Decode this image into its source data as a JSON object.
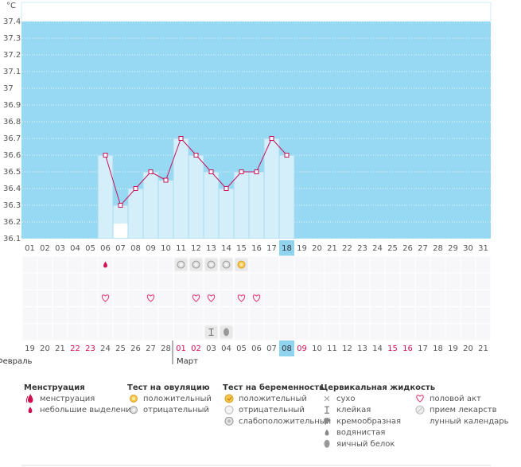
{
  "chart_data": {
    "type": "line",
    "unit": "°C",
    "categories": [
      "01",
      "02",
      "03",
      "04",
      "05",
      "06",
      "07",
      "08",
      "09",
      "10",
      "11",
      "12",
      "13",
      "14",
      "15",
      "16",
      "17",
      "18",
      "19",
      "20",
      "21",
      "22",
      "23",
      "24",
      "25",
      "26",
      "27",
      "28",
      "29",
      "30",
      "31"
    ],
    "values": [
      null,
      null,
      null,
      null,
      null,
      36.6,
      36.3,
      36.4,
      36.5,
      36.45,
      36.7,
      36.6,
      36.5,
      36.4,
      36.5,
      36.5,
      36.7,
      36.6,
      null,
      null,
      null,
      null,
      null,
      null,
      null,
      null,
      null,
      null,
      null,
      null,
      null
    ],
    "color": "#c8105a",
    "bar_color": "#d4eefa",
    "plot_color": "#97d8f2",
    "ylim": [
      36.1,
      37.4
    ],
    "yticks": [
      36.1,
      36.2,
      36.3,
      36.4,
      36.5,
      36.6,
      36.7,
      36.8,
      36.9,
      37,
      37.1,
      37.2,
      37.3,
      37.4
    ],
    "grid": true,
    "highlight": "18",
    "plot_icons": [
      {
        "day": "07",
        "icon": "moon"
      }
    ]
  },
  "icon_rows": [
    [
      {
        "day": "06",
        "icon": "spotting"
      },
      {
        "day": "11",
        "icon": "ovulation-negative"
      },
      {
        "day": "12",
        "icon": "ovulation-negative"
      },
      {
        "day": "13",
        "icon": "ovulation-negative"
      },
      {
        "day": "14",
        "icon": "ovulation-negative"
      },
      {
        "day": "15",
        "icon": "ovulation-positive"
      }
    ],
    [],
    [
      {
        "day": "06",
        "icon": "intercourse"
      },
      {
        "day": "09",
        "icon": "intercourse"
      },
      {
        "day": "12",
        "icon": "intercourse"
      },
      {
        "day": "13",
        "icon": "intercourse"
      },
      {
        "day": "15",
        "icon": "intercourse"
      },
      {
        "day": "16",
        "icon": "intercourse"
      }
    ],
    [],
    [
      {
        "day": "13",
        "icon": "sticky"
      },
      {
        "day": "14",
        "icon": "eggwhite"
      }
    ]
  ],
  "dates": {
    "labels": [
      "19",
      "20",
      "21",
      "22",
      "23",
      "24",
      "25",
      "26",
      "27",
      "28",
      "01",
      "02",
      "03",
      "04",
      "05",
      "06",
      "07",
      "08",
      "09",
      "10",
      "11",
      "12",
      "13",
      "14",
      "15",
      "16",
      "17",
      "18",
      "19",
      "20",
      "21"
    ],
    "red": [
      false,
      false,
      false,
      true,
      true,
      false,
      false,
      false,
      false,
      false,
      true,
      true,
      false,
      false,
      false,
      false,
      false,
      false,
      true,
      false,
      false,
      false,
      false,
      false,
      true,
      true,
      false,
      false,
      false,
      false,
      false
    ],
    "highlight": "08",
    "months": [
      {
        "label": "Февраль",
        "start": "19"
      },
      {
        "label": "Март",
        "start": "01"
      }
    ]
  },
  "legend": [
    {
      "title": "Менструация",
      "items": [
        {
          "label": "менструация",
          "icon": "menstruation"
        },
        {
          "label": "небольшие выделения",
          "icon": "spotting"
        }
      ]
    },
    {
      "title": "Тест на овуляцию",
      "items": [
        {
          "label": "положительный",
          "icon": "ovulation-positive"
        },
        {
          "label": "отрицательный",
          "icon": "ovulation-negative"
        }
      ]
    },
    {
      "title": "Тест на беременность",
      "items": [
        {
          "label": "положительный",
          "icon": "pregnancy-positive"
        },
        {
          "label": "отрицательный",
          "icon": "pregnancy-negative"
        },
        {
          "label": "слабоположительный",
          "icon": "pregnancy-weak"
        }
      ]
    },
    {
      "title": "Цервикальная жидкость",
      "items": [
        {
          "label": "сухо",
          "icon": "dry"
        },
        {
          "label": "клейкая",
          "icon": "sticky"
        },
        {
          "label": "кремообразная",
          "icon": "creamy"
        },
        {
          "label": "водянистая",
          "icon": "watery"
        },
        {
          "label": "яичный белок",
          "icon": "eggwhite"
        }
      ]
    },
    {
      "items": [
        {
          "label": "половой акт",
          "icon": "intercourse"
        },
        {
          "label": "прием лекарств",
          "icon": "medication"
        },
        {
          "label": "лунный календарь",
          "icon": "moon"
        }
      ]
    }
  ]
}
